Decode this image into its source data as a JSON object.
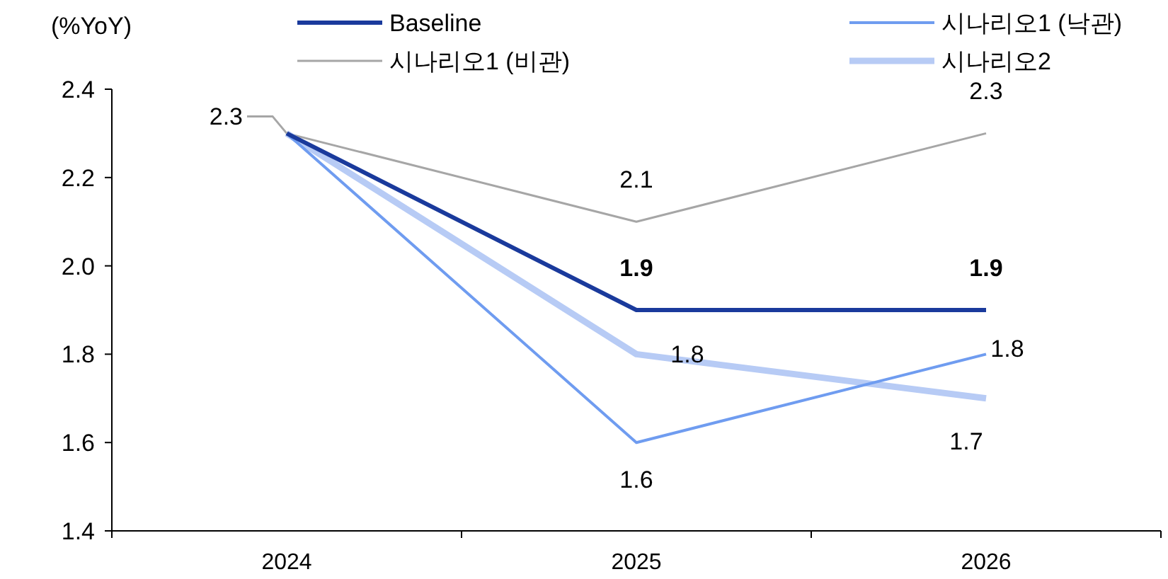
{
  "chart_data": {
    "type": "line",
    "ylabel": "(%YoY)",
    "categories": [
      "2024",
      "2025",
      "2026"
    ],
    "ylim": [
      1.4,
      2.4
    ],
    "yticks": [
      {
        "value": 1.4,
        "label": "1.4"
      },
      {
        "value": 1.6,
        "label": "1.6"
      },
      {
        "value": 1.8,
        "label": "1.8"
      },
      {
        "value": 2,
        "label": "2.0"
      },
      {
        "value": 2.2,
        "label": "2.2"
      },
      {
        "value": 2.4,
        "label": "2.4"
      }
    ],
    "legend": "top",
    "grid": false,
    "marker": "none",
    "line_style": "solid",
    "series": [
      {
        "name": "Baseline",
        "color": "#1a3a9c",
        "values": [
          2.3,
          1.9,
          1.9
        ],
        "value_labels": [
          null,
          "1.9",
          "1.9"
        ]
      },
      {
        "name": "시나리오1 (낙관)",
        "color": "#6f9cf0",
        "values": [
          2.3,
          1.6,
          1.8
        ],
        "value_labels": [
          null,
          "1.6",
          "1.8"
        ]
      },
      {
        "name": "시나리오1 (비관)",
        "color": "#a6a6a6",
        "values": [
          2.3,
          2.1,
          2.3
        ],
        "value_labels": [
          "2.3",
          "2.1",
          "2.3"
        ]
      },
      {
        "name": "시나리오2",
        "color": "#b7cbf5",
        "values": [
          2.3,
          1.8,
          1.7
        ],
        "value_labels": [
          null,
          "1.8",
          "1.7"
        ]
      }
    ]
  }
}
